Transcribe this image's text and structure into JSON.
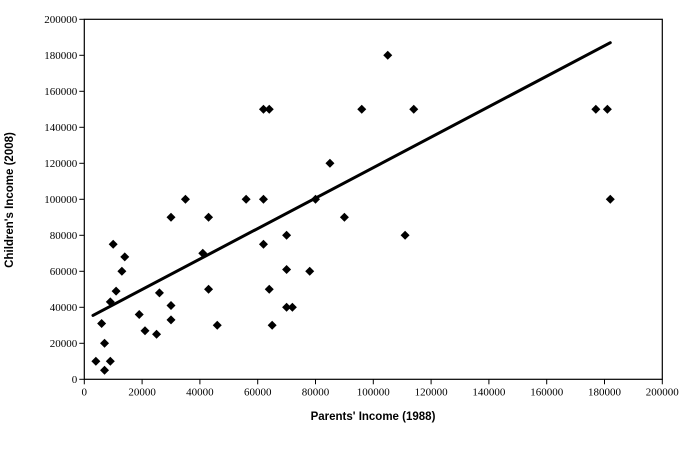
{
  "chart_data": {
    "type": "scatter",
    "title": "",
    "xlabel": "Parents' Income (1988)",
    "ylabel": "Children's Income (2008)",
    "xlim": [
      0,
      200000
    ],
    "ylim": [
      0,
      200000
    ],
    "x_ticks": [
      0,
      20000,
      40000,
      60000,
      80000,
      100000,
      120000,
      140000,
      160000,
      180000,
      200000
    ],
    "y_ticks": [
      0,
      20000,
      40000,
      60000,
      80000,
      100000,
      120000,
      140000,
      160000,
      180000,
      200000
    ],
    "grid": "off",
    "legend": "none",
    "marker": "diamond",
    "marker_color": "#000000",
    "axis_color": "#000000",
    "background_color": "#ffffff",
    "points": [
      [
        4000,
        10000
      ],
      [
        6000,
        31000
      ],
      [
        7000,
        5000
      ],
      [
        7000,
        20000
      ],
      [
        9000,
        10000
      ],
      [
        9000,
        43000
      ],
      [
        10000,
        75000
      ],
      [
        11000,
        49000
      ],
      [
        13000,
        60000
      ],
      [
        14000,
        68000
      ],
      [
        19000,
        36000
      ],
      [
        21000,
        27000
      ],
      [
        25000,
        25000
      ],
      [
        26000,
        48000
      ],
      [
        30000,
        33000
      ],
      [
        30000,
        41000
      ],
      [
        30000,
        90000
      ],
      [
        35000,
        100000
      ],
      [
        41000,
        70000
      ],
      [
        43000,
        50000
      ],
      [
        43000,
        90000
      ],
      [
        46000,
        30000
      ],
      [
        56000,
        100000
      ],
      [
        62000,
        75000
      ],
      [
        62000,
        100000
      ],
      [
        62000,
        150000
      ],
      [
        64000,
        50000
      ],
      [
        64000,
        150000
      ],
      [
        65000,
        30000
      ],
      [
        70000,
        40000
      ],
      [
        70000,
        61000
      ],
      [
        70000,
        80000
      ],
      [
        72000,
        40000
      ],
      [
        78000,
        60000
      ],
      [
        80000,
        100000
      ],
      [
        85000,
        120000
      ],
      [
        90000,
        90000
      ],
      [
        96000,
        150000
      ],
      [
        105000,
        180000
      ],
      [
        111000,
        80000
      ],
      [
        114000,
        150000
      ],
      [
        177000,
        150000
      ],
      [
        181000,
        150000
      ],
      [
        182000,
        100000
      ]
    ],
    "trend_line": {
      "x1": 3000,
      "y1": 35500,
      "x2": 182000,
      "y2": 187000,
      "color": "#000000"
    }
  }
}
